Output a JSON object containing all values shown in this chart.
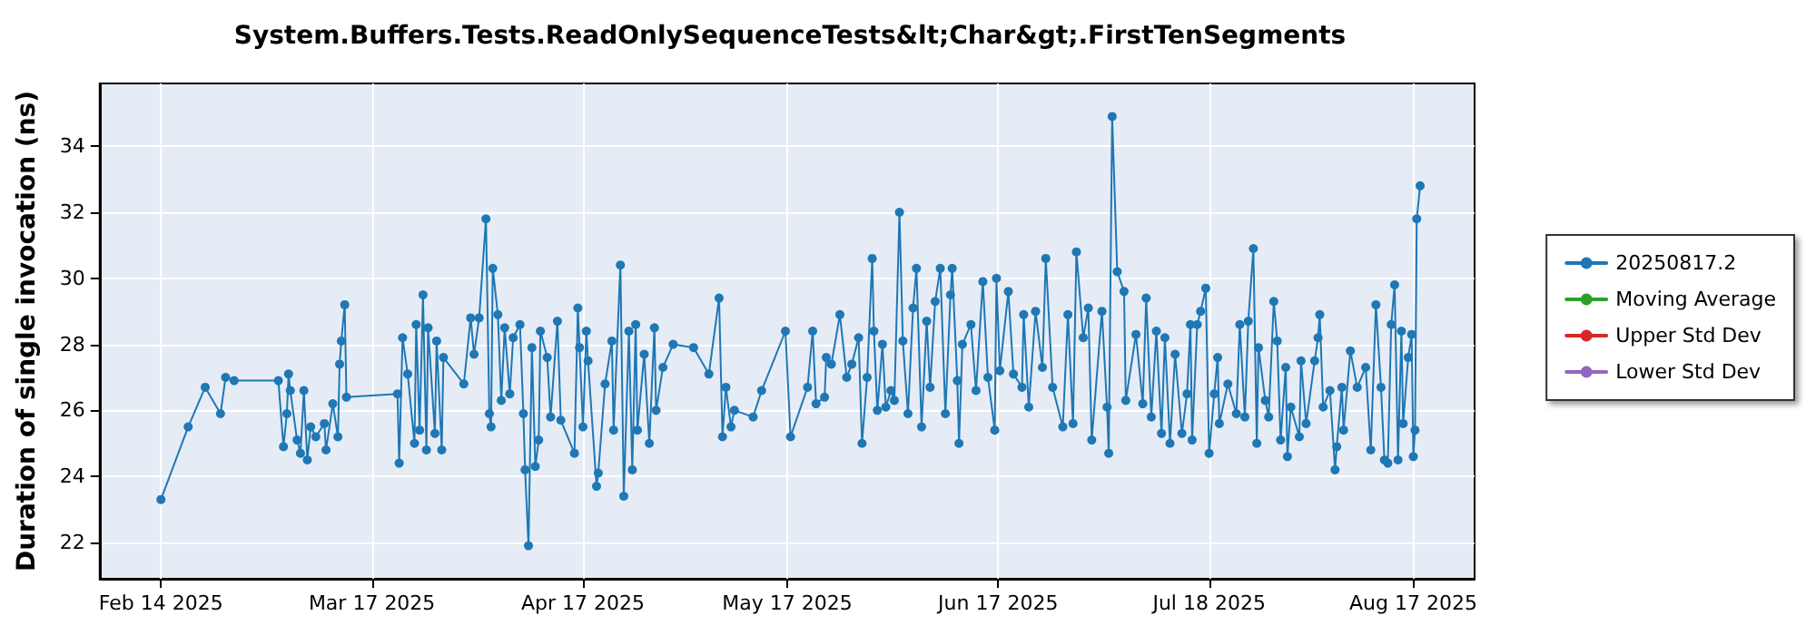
{
  "chart_data": {
    "type": "line",
    "title": "System.Buffers.Tests.ReadOnlySequenceTests&lt;Char&gt;.FirstTenSegments",
    "ylabel": "Duration of single invocation (ns)",
    "xlim": [
      "2025-02-05",
      "2025-08-26"
    ],
    "xticks": [
      {
        "value": "2025-02-14",
        "label": "Feb 14 2025"
      },
      {
        "value": "2025-03-17",
        "label": "Mar 17 2025"
      },
      {
        "value": "2025-04-17",
        "label": "Apr 17 2025"
      },
      {
        "value": "2025-05-17",
        "label": "May 17 2025"
      },
      {
        "value": "2025-06-17",
        "label": "Jun 17 2025"
      },
      {
        "value": "2025-07-18",
        "label": "Jul 18 2025"
      },
      {
        "value": "2025-08-17",
        "label": "Aug 17 2025"
      }
    ],
    "ylim": [
      20.9,
      35.9
    ],
    "yticks": [
      22,
      24,
      26,
      28,
      30,
      32,
      34
    ],
    "grid": true,
    "legend": "right",
    "marker": "circle",
    "line_style": "solid",
    "series": [
      {
        "name": "20250817.2",
        "color": "#1f77b4",
        "x": [
          "2025-02-14T00:00",
          "2025-02-18T00:00",
          "2025-02-20T12:00",
          "2025-02-22T18:00",
          "2025-02-23T12:00",
          "2025-02-24T18:00",
          "2025-03-03T06:00",
          "2025-03-04T00:00",
          "2025-03-04T12:00",
          "2025-03-04T18:00",
          "2025-03-05T00:00",
          "2025-03-06T00:00",
          "2025-03-06T12:00",
          "2025-03-07T00:00",
          "2025-03-07T12:00",
          "2025-03-08T00:00",
          "2025-03-08T18:00",
          "2025-03-10T00:00",
          "2025-03-10T06:00",
          "2025-03-11T06:00",
          "2025-03-12T00:00",
          "2025-03-12T06:00",
          "2025-03-12T12:00",
          "2025-03-13T00:00",
          "2025-03-13T06:00",
          "2025-03-20T18:00",
          "2025-03-21T00:00",
          "2025-03-21T12:00",
          "2025-03-22T06:00",
          "2025-03-23T06:00",
          "2025-03-23T12:00",
          "2025-03-24T00:00",
          "2025-03-24T12:00",
          "2025-03-25T00:00",
          "2025-03-25T06:00",
          "2025-03-26T06:00",
          "2025-03-26T12:00",
          "2025-03-27T06:00",
          "2025-03-27T12:00",
          "2025-03-30T12:00",
          "2025-03-31T12:00",
          "2025-04-01T00:00",
          "2025-04-01T18:00",
          "2025-04-02T18:00",
          "2025-04-03T06:00",
          "2025-04-03T12:00",
          "2025-04-03T18:00",
          "2025-04-04T12:00",
          "2025-04-05T00:00",
          "2025-04-05T12:00",
          "2025-04-06T06:00",
          "2025-04-06T18:00",
          "2025-04-07T18:00",
          "2025-04-08T06:00",
          "2025-04-08T12:00",
          "2025-04-09T00:00",
          "2025-04-09T12:00",
          "2025-04-10T00:00",
          "2025-04-10T12:00",
          "2025-04-10T18:00",
          "2025-04-11T18:00",
          "2025-04-12T06:00",
          "2025-04-13T06:00",
          "2025-04-13T18:00",
          "2025-04-15T18:00",
          "2025-04-16T06:00",
          "2025-04-16T12:00",
          "2025-04-17T00:00",
          "2025-04-17T12:00",
          "2025-04-17T18:00",
          "2025-04-19T00:00",
          "2025-04-19T06:00",
          "2025-04-20T06:00",
          "2025-04-21T06:00",
          "2025-04-21T12:00",
          "2025-04-22T12:00",
          "2025-04-23T00:00",
          "2025-04-23T18:00",
          "2025-04-24T06:00",
          "2025-04-24T18:00",
          "2025-04-25T00:00",
          "2025-04-26T00:00",
          "2025-04-26T18:00",
          "2025-04-27T12:00",
          "2025-04-27T18:00",
          "2025-04-28T18:00",
          "2025-04-30T06:00",
          "2025-05-03T06:00",
          "2025-05-05T12:00",
          "2025-05-07T00:00",
          "2025-05-07T12:00",
          "2025-05-08T00:00",
          "2025-05-08T18:00",
          "2025-05-09T06:00",
          "2025-05-12T00:00",
          "2025-05-13T06:00",
          "2025-05-16T18:00",
          "2025-05-17T12:00",
          "2025-05-20T00:00",
          "2025-05-20T18:00",
          "2025-05-21T06:00",
          "2025-05-22T12:00",
          "2025-05-22T18:00",
          "2025-05-23T12:00",
          "2025-05-24T18:00",
          "2025-05-25T18:00",
          "2025-05-26T12:00",
          "2025-05-27T12:00",
          "2025-05-28T00:00",
          "2025-05-28T18:00",
          "2025-05-29T12:00",
          "2025-05-29T18:00",
          "2025-05-30T06:00",
          "2025-05-31T00:00",
          "2025-05-31T12:00",
          "2025-06-01T06:00",
          "2025-06-01T18:00",
          "2025-06-02T12:00",
          "2025-06-03T00:00",
          "2025-06-03T18:00",
          "2025-06-04T12:00",
          "2025-06-05T00:00",
          "2025-06-05T18:00",
          "2025-06-06T12:00",
          "2025-06-07T00:00",
          "2025-06-07T18:00",
          "2025-06-08T12:00",
          "2025-06-09T06:00",
          "2025-06-10T00:00",
          "2025-06-10T06:00",
          "2025-06-11T00:00",
          "2025-06-11T06:00",
          "2025-06-11T18:00",
          "2025-06-13T00:00",
          "2025-06-13T18:00",
          "2025-06-14T18:00",
          "2025-06-15T12:00",
          "2025-06-16T12:00",
          "2025-06-16T18:00",
          "2025-06-17T06:00",
          "2025-06-18T12:00",
          "2025-06-19T06:00",
          "2025-06-20T12:00",
          "2025-06-20T18:00",
          "2025-06-21T12:00",
          "2025-06-22T12:00",
          "2025-06-23T12:00",
          "2025-06-24T00:00",
          "2025-06-25T00:00",
          "2025-06-26T12:00",
          "2025-06-27T06:00",
          "2025-06-28T00:00",
          "2025-06-28T12:00",
          "2025-06-29T12:00",
          "2025-06-30T06:00",
          "2025-06-30T18:00",
          "2025-07-02T06:00",
          "2025-07-03T00:00",
          "2025-07-03T06:00",
          "2025-07-03T18:00",
          "2025-07-04T12:00",
          "2025-07-05T12:00",
          "2025-07-05T18:00",
          "2025-07-07T06:00",
          "2025-07-08T06:00",
          "2025-07-08T18:00",
          "2025-07-09T12:00",
          "2025-07-10T06:00",
          "2025-07-11T00:00",
          "2025-07-11T12:00",
          "2025-07-12T06:00",
          "2025-07-13T00:00",
          "2025-07-14T00:00",
          "2025-07-14T18:00",
          "2025-07-15T06:00",
          "2025-07-15T12:00",
          "2025-07-16T06:00",
          "2025-07-16T18:00",
          "2025-07-17T12:00",
          "2025-07-18T00:00",
          "2025-07-18T18:00",
          "2025-07-19T06:00",
          "2025-07-19T12:00",
          "2025-07-20T18:00",
          "2025-07-22T00:00",
          "2025-07-22T12:00",
          "2025-07-23T06:00",
          "2025-07-23T18:00",
          "2025-07-24T12:00",
          "2025-07-25T00:00",
          "2025-07-25T06:00",
          "2025-07-26T06:00",
          "2025-07-26T18:00",
          "2025-07-27T12:00",
          "2025-07-28T00:00",
          "2025-07-28T12:00",
          "2025-07-29T06:00",
          "2025-07-29T12:00",
          "2025-07-30T00:00",
          "2025-07-31T06:00",
          "2025-07-31T12:00",
          "2025-08-01T06:00",
          "2025-08-02T12:00",
          "2025-08-03T00:00",
          "2025-08-03T06:00",
          "2025-08-03T18:00",
          "2025-08-04T18:00",
          "2025-08-05T12:00",
          "2025-08-05T18:00",
          "2025-08-06T12:00",
          "2025-08-06T18:00",
          "2025-08-07T18:00",
          "2025-08-08T18:00",
          "2025-08-10T00:00",
          "2025-08-10T18:00",
          "2025-08-11T12:00",
          "2025-08-12T06:00",
          "2025-08-12T18:00",
          "2025-08-13T06:00",
          "2025-08-13T18:00",
          "2025-08-14T06:00",
          "2025-08-14T18:00",
          "2025-08-15T06:00",
          "2025-08-15T12:00",
          "2025-08-16T06:00",
          "2025-08-16T18:00",
          "2025-08-17T00:00",
          "2025-08-17T06:00",
          "2025-08-17T12:00",
          "2025-08-18T00:00"
        ],
        "values": [
          23.3,
          25.5,
          26.7,
          25.9,
          27.0,
          26.9,
          26.9,
          24.9,
          25.9,
          27.1,
          26.6,
          25.1,
          24.7,
          26.6,
          24.5,
          25.5,
          25.2,
          25.6,
          24.8,
          26.2,
          25.2,
          27.4,
          28.1,
          29.2,
          26.4,
          26.5,
          24.4,
          28.2,
          27.1,
          25.0,
          28.6,
          25.4,
          29.5,
          24.8,
          28.5,
          25.3,
          28.1,
          24.8,
          27.6,
          26.8,
          28.8,
          27.7,
          28.8,
          31.8,
          25.9,
          25.5,
          30.3,
          28.9,
          26.3,
          28.5,
          26.5,
          28.2,
          28.6,
          25.9,
          24.2,
          21.9,
          27.9,
          24.3,
          25.1,
          28.4,
          27.6,
          25.8,
          28.7,
          25.7,
          24.7,
          29.1,
          27.9,
          25.5,
          28.4,
          27.5,
          23.7,
          24.1,
          26.8,
          28.1,
          25.4,
          30.4,
          23.4,
          28.4,
          24.2,
          28.6,
          25.4,
          27.7,
          25.0,
          28.5,
          26.0,
          27.3,
          28.0,
          27.9,
          27.1,
          29.4,
          25.2,
          26.7,
          25.5,
          26.0,
          25.8,
          26.6,
          28.4,
          25.2,
          26.7,
          28.4,
          26.2,
          26.4,
          27.6,
          27.4,
          28.9,
          27.0,
          27.4,
          28.2,
          25.0,
          27.0,
          30.6,
          28.4,
          26.0,
          28.0,
          26.1,
          26.6,
          26.3,
          32.0,
          28.1,
          25.9,
          29.1,
          30.3,
          25.5,
          28.7,
          26.7,
          29.3,
          30.3,
          25.9,
          29.5,
          30.3,
          26.9,
          25.0,
          28.0,
          28.6,
          26.6,
          29.9,
          27.0,
          25.4,
          30.0,
          27.2,
          29.6,
          27.1,
          26.7,
          28.9,
          26.1,
          29.0,
          27.3,
          30.6,
          26.7,
          25.5,
          28.9,
          25.6,
          30.8,
          28.2,
          29.1,
          25.1,
          29.0,
          26.1,
          24.7,
          34.9,
          30.2,
          29.6,
          26.3,
          28.3,
          26.2,
          29.4,
          25.8,
          28.4,
          25.3,
          28.2,
          25.0,
          27.7,
          25.3,
          26.5,
          28.6,
          25.1,
          28.6,
          29.0,
          29.7,
          24.7,
          26.5,
          27.6,
          25.6,
          26.8,
          25.9,
          28.6,
          25.8,
          28.7,
          30.9,
          25.0,
          27.9,
          26.3,
          25.8,
          29.3,
          28.1,
          25.1,
          27.3,
          24.6,
          26.1,
          25.2,
          27.5,
          25.6,
          27.5,
          28.2,
          28.9,
          26.1,
          26.6,
          24.2,
          24.9,
          26.7,
          25.4,
          27.8,
          26.7,
          27.3,
          24.8,
          29.2,
          26.7,
          24.5,
          24.4,
          28.6,
          29.8,
          24.5,
          28.4,
          25.6,
          27.6,
          28.3,
          24.6,
          25.4,
          31.8,
          32.8
        ]
      },
      {
        "name": "Moving Average",
        "color": "#2ca02c"
      },
      {
        "name": "Upper Std Dev",
        "color": "#d62728"
      },
      {
        "name": "Lower Std Dev",
        "color": "#9467bd"
      }
    ]
  }
}
